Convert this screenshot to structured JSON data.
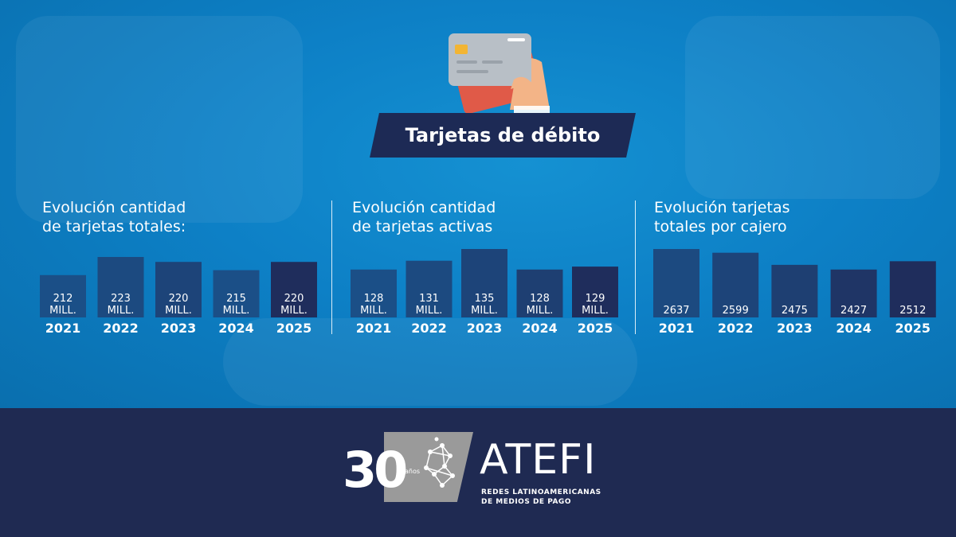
{
  "header": {
    "title": "Tarjetas de débito"
  },
  "chart_data": [
    {
      "type": "bar",
      "title_lines": [
        "Evolución cantidad",
        "de tarjetas totales:"
      ],
      "categories": [
        "2021",
        "2022",
        "2023",
        "2024",
        "2025"
      ],
      "values": [
        212,
        223,
        220,
        215,
        220
      ],
      "value_labels": [
        [
          "212",
          "MILL."
        ],
        [
          "223",
          "MILL."
        ],
        [
          "220",
          "MILL."
        ],
        [
          "215",
          "MILL."
        ],
        [
          "220",
          "MILL."
        ]
      ],
      "unit": "MILL.",
      "colors": [
        "#1b4f87",
        "#1c4a80",
        "#1d4479",
        "#1b4f87",
        "#1f2d5c"
      ]
    },
    {
      "type": "bar",
      "title_lines": [
        "Evolución cantidad",
        "de tarjetas activas"
      ],
      "categories": [
        "2021",
        "2022",
        "2023",
        "2024",
        "2025"
      ],
      "values": [
        128,
        131,
        135,
        128,
        129
      ],
      "value_labels": [
        [
          "128",
          "MILL."
        ],
        [
          "131",
          "MILL."
        ],
        [
          "135",
          "MILL."
        ],
        [
          "128",
          "MILL."
        ],
        [
          "129",
          "MILL."
        ]
      ],
      "unit": "MILL.",
      "colors": [
        "#1b4f87",
        "#1c4a80",
        "#1d4479",
        "#1e3f72",
        "#1f2d5c"
      ]
    },
    {
      "type": "bar",
      "title_lines": [
        "Evolución tarjetas",
        "totales por cajero"
      ],
      "categories": [
        "2021",
        "2022",
        "2023",
        "2024",
        "2025"
      ],
      "values": [
        2637,
        2599,
        2475,
        2427,
        2512
      ],
      "value_labels": [
        [
          "2637"
        ],
        [
          "2599"
        ],
        [
          "2475"
        ],
        [
          "2427"
        ],
        [
          "2512"
        ]
      ],
      "colors": [
        "#1c4a80",
        "#1d4479",
        "#1e3f72",
        "#1f3566",
        "#1f2d5c"
      ]
    }
  ],
  "footer": {
    "logo_number": "30",
    "logo_anos": "años",
    "logo_name": "ATEFI",
    "logo_sub": [
      "REDES LATINOAMERICANAS",
      "DE MEDIOS DE PAGO"
    ]
  },
  "colors": {
    "background": "#0d80c6",
    "banner": "#1d2a55",
    "footer": "#1f2a52"
  }
}
